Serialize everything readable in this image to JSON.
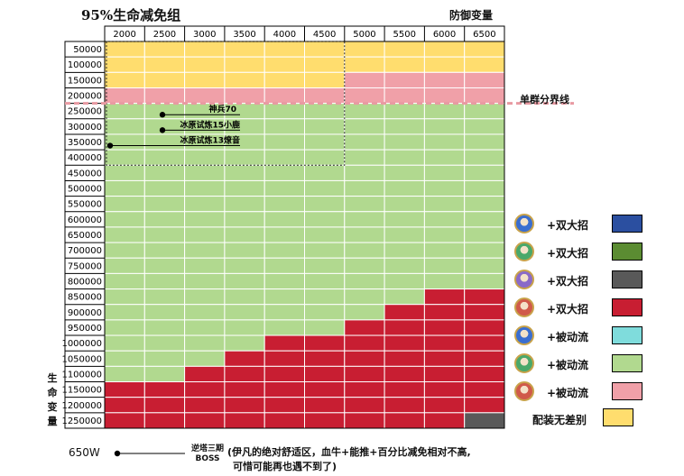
{
  "chart_data": {
    "type": "heatmap",
    "title": "95%生命减免组",
    "xlabel": "防御变量",
    "ylabel": "生命变量",
    "x_categories": [
      "2000",
      "2500",
      "3000",
      "3500",
      "4000",
      "4500",
      "5000",
      "5500",
      "6000",
      "6500"
    ],
    "y_categories": [
      "50000",
      "100000",
      "150000",
      "200000",
      "250000",
      "300000",
      "350000",
      "400000",
      "450000",
      "500000",
      "550000",
      "600000",
      "650000",
      "700000",
      "750000",
      "800000",
      "850000",
      "900000",
      "950000",
      "1000000",
      "1050000",
      "1100000",
      "1150000",
      "1200000",
      "1250000"
    ],
    "legend": [
      {
        "key": "blue",
        "label": "+双大招",
        "color": "#2b4fa0",
        "icon": "character-portrait-icon"
      },
      {
        "key": "green",
        "label": "+双大招",
        "color": "#5b8c32",
        "icon": "character-portrait-icon"
      },
      {
        "key": "gray",
        "label": "+双大招",
        "color": "#595959",
        "icon": "character-portrait-icon"
      },
      {
        "key": "red",
        "label": "+双大招",
        "color": "#c81e32",
        "icon": "character-portrait-icon"
      },
      {
        "key": "cyan",
        "label": "+被动流",
        "color": "#7fdcdc",
        "icon": "character-portrait-icon"
      },
      {
        "key": "lgreen",
        "label": "+被动流",
        "color": "#b1d98f",
        "icon": "character-portrait-icon"
      },
      {
        "key": "pink",
        "label": "+被动流",
        "color": "#f0a0a8",
        "icon": "character-portrait-icon"
      },
      {
        "key": "yellow",
        "label": "配装无差别",
        "color": "#ffdd6e"
      }
    ],
    "cells": [
      [
        "yellow",
        "yellow",
        "yellow",
        "yellow",
        "yellow",
        "yellow",
        "yellow",
        "yellow",
        "yellow",
        "yellow"
      ],
      [
        "yellow",
        "yellow",
        "yellow",
        "yellow",
        "yellow",
        "yellow",
        "yellow",
        "yellow",
        "yellow",
        "yellow"
      ],
      [
        "yellow",
        "yellow",
        "yellow",
        "yellow",
        "yellow",
        "yellow",
        "pink",
        "pink",
        "pink",
        "pink"
      ],
      [
        "pink",
        "pink",
        "pink",
        "pink",
        "pink",
        "pink",
        "pink",
        "pink",
        "pink",
        "pink"
      ],
      [
        "lgreen",
        "lgreen",
        "lgreen",
        "lgreen",
        "lgreen",
        "lgreen",
        "lgreen",
        "lgreen",
        "lgreen",
        "lgreen"
      ],
      [
        "lgreen",
        "lgreen",
        "lgreen",
        "lgreen",
        "lgreen",
        "lgreen",
        "lgreen",
        "lgreen",
        "lgreen",
        "lgreen"
      ],
      [
        "lgreen",
        "lgreen",
        "lgreen",
        "lgreen",
        "lgreen",
        "lgreen",
        "lgreen",
        "lgreen",
        "lgreen",
        "lgreen"
      ],
      [
        "lgreen",
        "lgreen",
        "lgreen",
        "lgreen",
        "lgreen",
        "lgreen",
        "lgreen",
        "lgreen",
        "lgreen",
        "lgreen"
      ],
      [
        "lgreen",
        "lgreen",
        "lgreen",
        "lgreen",
        "lgreen",
        "lgreen",
        "lgreen",
        "lgreen",
        "lgreen",
        "lgreen"
      ],
      [
        "lgreen",
        "lgreen",
        "lgreen",
        "lgreen",
        "lgreen",
        "lgreen",
        "lgreen",
        "lgreen",
        "lgreen",
        "lgreen"
      ],
      [
        "lgreen",
        "lgreen",
        "lgreen",
        "lgreen",
        "lgreen",
        "lgreen",
        "lgreen",
        "lgreen",
        "lgreen",
        "lgreen"
      ],
      [
        "lgreen",
        "lgreen",
        "lgreen",
        "lgreen",
        "lgreen",
        "lgreen",
        "lgreen",
        "lgreen",
        "lgreen",
        "lgreen"
      ],
      [
        "lgreen",
        "lgreen",
        "lgreen",
        "lgreen",
        "lgreen",
        "lgreen",
        "lgreen",
        "lgreen",
        "lgreen",
        "lgreen"
      ],
      [
        "lgreen",
        "lgreen",
        "lgreen",
        "lgreen",
        "lgreen",
        "lgreen",
        "lgreen",
        "lgreen",
        "lgreen",
        "lgreen"
      ],
      [
        "lgreen",
        "lgreen",
        "lgreen",
        "lgreen",
        "lgreen",
        "lgreen",
        "lgreen",
        "lgreen",
        "lgreen",
        "lgreen"
      ],
      [
        "lgreen",
        "lgreen",
        "lgreen",
        "lgreen",
        "lgreen",
        "lgreen",
        "lgreen",
        "lgreen",
        "lgreen",
        "lgreen"
      ],
      [
        "lgreen",
        "lgreen",
        "lgreen",
        "lgreen",
        "lgreen",
        "lgreen",
        "lgreen",
        "lgreen",
        "red",
        "red"
      ],
      [
        "lgreen",
        "lgreen",
        "lgreen",
        "lgreen",
        "lgreen",
        "lgreen",
        "lgreen",
        "red",
        "red",
        "red"
      ],
      [
        "lgreen",
        "lgreen",
        "lgreen",
        "lgreen",
        "lgreen",
        "lgreen",
        "red",
        "red",
        "red",
        "red"
      ],
      [
        "lgreen",
        "lgreen",
        "lgreen",
        "lgreen",
        "red",
        "red",
        "red",
        "red",
        "red",
        "red"
      ],
      [
        "lgreen",
        "lgreen",
        "lgreen",
        "red",
        "red",
        "red",
        "red",
        "red",
        "red",
        "red"
      ],
      [
        "lgreen",
        "lgreen",
        "red",
        "red",
        "red",
        "red",
        "red",
        "red",
        "red",
        "red"
      ],
      [
        "red",
        "red",
        "red",
        "red",
        "red",
        "red",
        "red",
        "red",
        "red",
        "red"
      ],
      [
        "red",
        "red",
        "red",
        "red",
        "red",
        "red",
        "red",
        "red",
        "red",
        "red"
      ],
      [
        "red",
        "red",
        "red",
        "red",
        "red",
        "red",
        "red",
        "red",
        "red",
        "gray"
      ]
    ],
    "threshold": {
      "label": "单群分界线",
      "after_y": "200000"
    },
    "highlight_region": {
      "x_from": "2000",
      "x_to": "4500",
      "y_from": "50000",
      "y_to": "400000"
    },
    "annotations": [
      {
        "text": "神兵70",
        "y": "250000"
      },
      {
        "text": "冰原试炼15小鹿",
        "y": "300000"
      },
      {
        "text": "冰原试炼13燎音",
        "y": "350000"
      }
    ],
    "footnote": {
      "value": "650W",
      "label_lines": [
        "逆塔三期",
        "BOSS"
      ],
      "desc_lines": [
        "(伊凡的绝对舒适区，血牛+能推+百分比减免相对不高,",
        "可惜可能再也遇不到了)"
      ]
    }
  }
}
